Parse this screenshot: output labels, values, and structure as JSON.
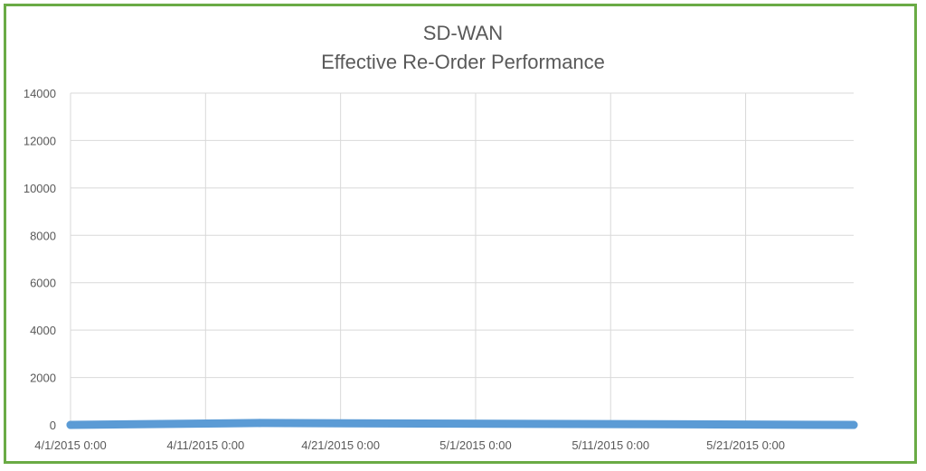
{
  "chart_data": {
    "type": "line",
    "title": "SD-WAN",
    "subtitle": "Effective Re-Order Performance",
    "xlabel": "",
    "ylabel": "",
    "ylim": [
      0,
      14000
    ],
    "y_ticks": [
      "0",
      "2000",
      "4000",
      "6000",
      "8000",
      "10000",
      "12000",
      "14000"
    ],
    "x_ticks": [
      "4/1/2015 0:00",
      "4/11/2015 0:00",
      "4/21/2015 0:00",
      "5/1/2015 0:00",
      "5/11/2015 0:00",
      "5/21/2015 0:00"
    ],
    "xlim": [
      "2015-04-01",
      "2015-05-29"
    ],
    "grid": true,
    "legend": "none",
    "colors": {
      "series": "#5b9bd5",
      "grid": "#d9d9d9",
      "border": "#6aab45",
      "text": "#595959"
    },
    "series": [
      {
        "x": [
          "2015-04-01",
          "2015-04-15",
          "2015-05-29"
        ],
        "values": [
          0,
          80,
          0
        ]
      }
    ]
  }
}
